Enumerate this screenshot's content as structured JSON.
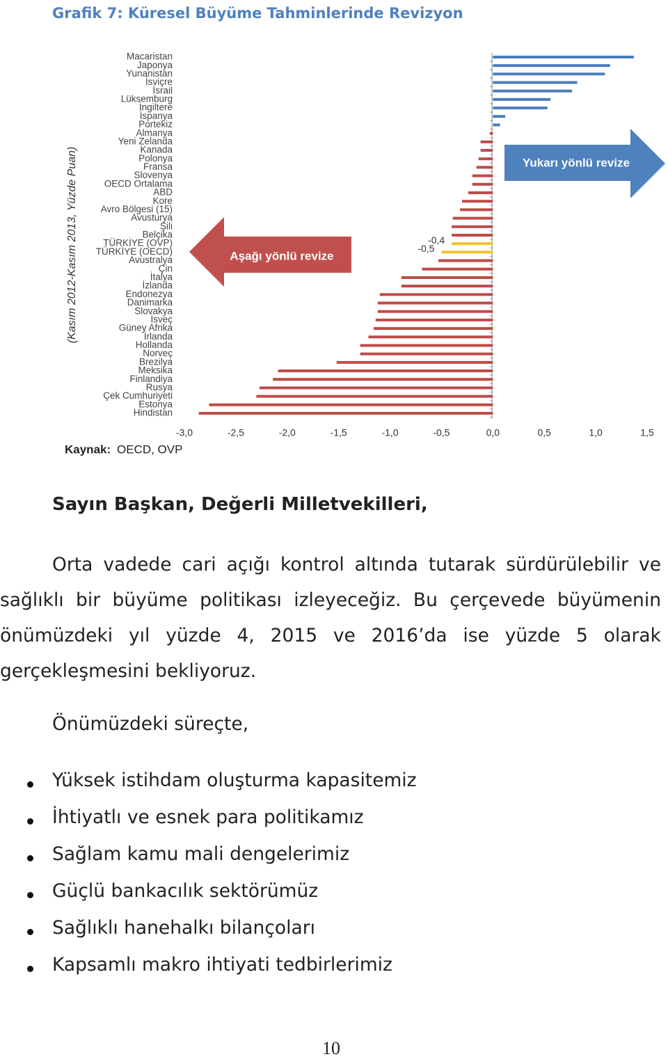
{
  "chart_data": {
    "type": "bar",
    "orientation": "horizontal",
    "title": "Grafik 7: Küresel Büyüme Tahminlerinde Revizyon",
    "y_label": "(Kasım 2012-Kasım 2013, Yüzde Puan)",
    "source_label": "Kaynak:",
    "source": "OECD, OVP",
    "annotations": [
      "Aşağı yönlü revize",
      "Yukarı yönlü revize"
    ],
    "categories": [
      "Macaristan",
      "Japonya",
      "Yunanistan",
      "İsviçre",
      "İsrail",
      "Lüksemburg",
      "İngiltere",
      "İspanya",
      "Portekiz",
      "Almanya",
      "Yeni Zelanda",
      "Kanada",
      "Polonya",
      "Fransa",
      "Slovenya",
      "OECD Ortalama",
      "ABD",
      "Kore",
      "Avro Bölgesi (15)",
      "Avusturya",
      "Şili",
      "Belçika",
      "TÜRKİYE (OVP)",
      "TÜRKİYE (OECD)",
      "Avustralya",
      "Çin",
      "İtalya",
      "İzlanda",
      "Endonezya",
      "Danimarka",
      "Slovakya",
      "İsveç",
      "Güney Afrika",
      "İrlanda",
      "Hollanda",
      "Norveç",
      "Brezilya",
      "Meksika",
      "Finlandiya",
      "Rusya",
      "Çek Cumhuriyeti",
      "Estonya",
      "Hindistan"
    ],
    "values": [
      1.37,
      1.14,
      1.09,
      0.82,
      0.77,
      0.56,
      0.53,
      0.12,
      0.07,
      -0.03,
      -0.12,
      -0.12,
      -0.14,
      -0.16,
      -0.2,
      -0.2,
      -0.24,
      -0.3,
      -0.32,
      -0.39,
      -0.4,
      -0.4,
      -0.4,
      -0.5,
      -0.53,
      -0.69,
      -0.89,
      -0.89,
      -1.1,
      -1.12,
      -1.12,
      -1.14,
      -1.16,
      -1.21,
      -1.29,
      -1.29,
      -1.52,
      -2.09,
      -2.14,
      -2.27,
      -2.3,
      -2.76,
      -2.86
    ],
    "value_labels": [
      null,
      null,
      null,
      null,
      null,
      null,
      null,
      null,
      null,
      null,
      null,
      null,
      null,
      null,
      null,
      null,
      null,
      null,
      null,
      null,
      null,
      null,
      "-0,4",
      "-0,5",
      null,
      null,
      null,
      null,
      null,
      null,
      null,
      null,
      null,
      null,
      null,
      null,
      null,
      null,
      null,
      null,
      null,
      null,
      null
    ],
    "colors": [
      "#4a7ebb",
      "#4a7ebb",
      "#4a7ebb",
      "#4a7ebb",
      "#4a7ebb",
      "#4a7ebb",
      "#4a7ebb",
      "#4a7ebb",
      "#4a7ebb",
      "#be4b48",
      "#be4b48",
      "#be4b48",
      "#be4b48",
      "#be4b48",
      "#be4b48",
      "#be4b48",
      "#be4b48",
      "#be4b48",
      "#be4b48",
      "#be4b48",
      "#be4b48",
      "#be4b48",
      "#f2c12e",
      "#f2c12e",
      "#be4b48",
      "#be4b48",
      "#be4b48",
      "#be4b48",
      "#be4b48",
      "#be4b48",
      "#be4b48",
      "#be4b48",
      "#be4b48",
      "#be4b48",
      "#be4b48",
      "#be4b48",
      "#be4b48",
      "#be4b48",
      "#be4b48",
      "#be4b48",
      "#be4b48",
      "#be4b48",
      "#be4b48"
    ],
    "xlim": [
      -3,
      1.5
    ],
    "xticks": [
      {
        "value": -3,
        "label": "-3,0"
      },
      {
        "value": -2.5,
        "label": "-2,5"
      },
      {
        "value": -2,
        "label": "-2,0"
      },
      {
        "value": -1.5,
        "label": "-1,5"
      },
      {
        "value": -1,
        "label": "-1,0"
      },
      {
        "value": -0.5,
        "label": "-0,5"
      },
      {
        "value": 0,
        "label": "0,0"
      },
      {
        "value": 0.5,
        "label": "0,5"
      },
      {
        "value": 1,
        "label": "1,0"
      },
      {
        "value": 1.5,
        "label": "1,5"
      }
    ],
    "grid": false
  },
  "document": {
    "heading": "Sayın Başkan, Değerli Milletvekilleri,",
    "paragraph": "Orta vadede cari açığı kontrol altında tutarak sürdürülebilir ve sağlıklı bir büyüme politikası izleyeceğiz. Bu çerçevede büyümenin önümüzdeki yıl yüzde 4, 2015 ve 2016’da ise yüzde 5 olarak gerçekleşmesini bekliyoruz.",
    "intro": "Önümüzdeki süreçte,",
    "bullets": [
      "Yüksek istihdam oluşturma kapasitemiz",
      "İhtiyatlı ve esnek para politikamız",
      "Sağlam kamu mali dengelerimiz",
      "Güçlü bankacılık sektörümüz",
      "Sağlıklı hanehalkı bilançoları",
      "Kapsamlı makro ihtiyati tedbirlerimiz"
    ],
    "page_number": "10"
  }
}
